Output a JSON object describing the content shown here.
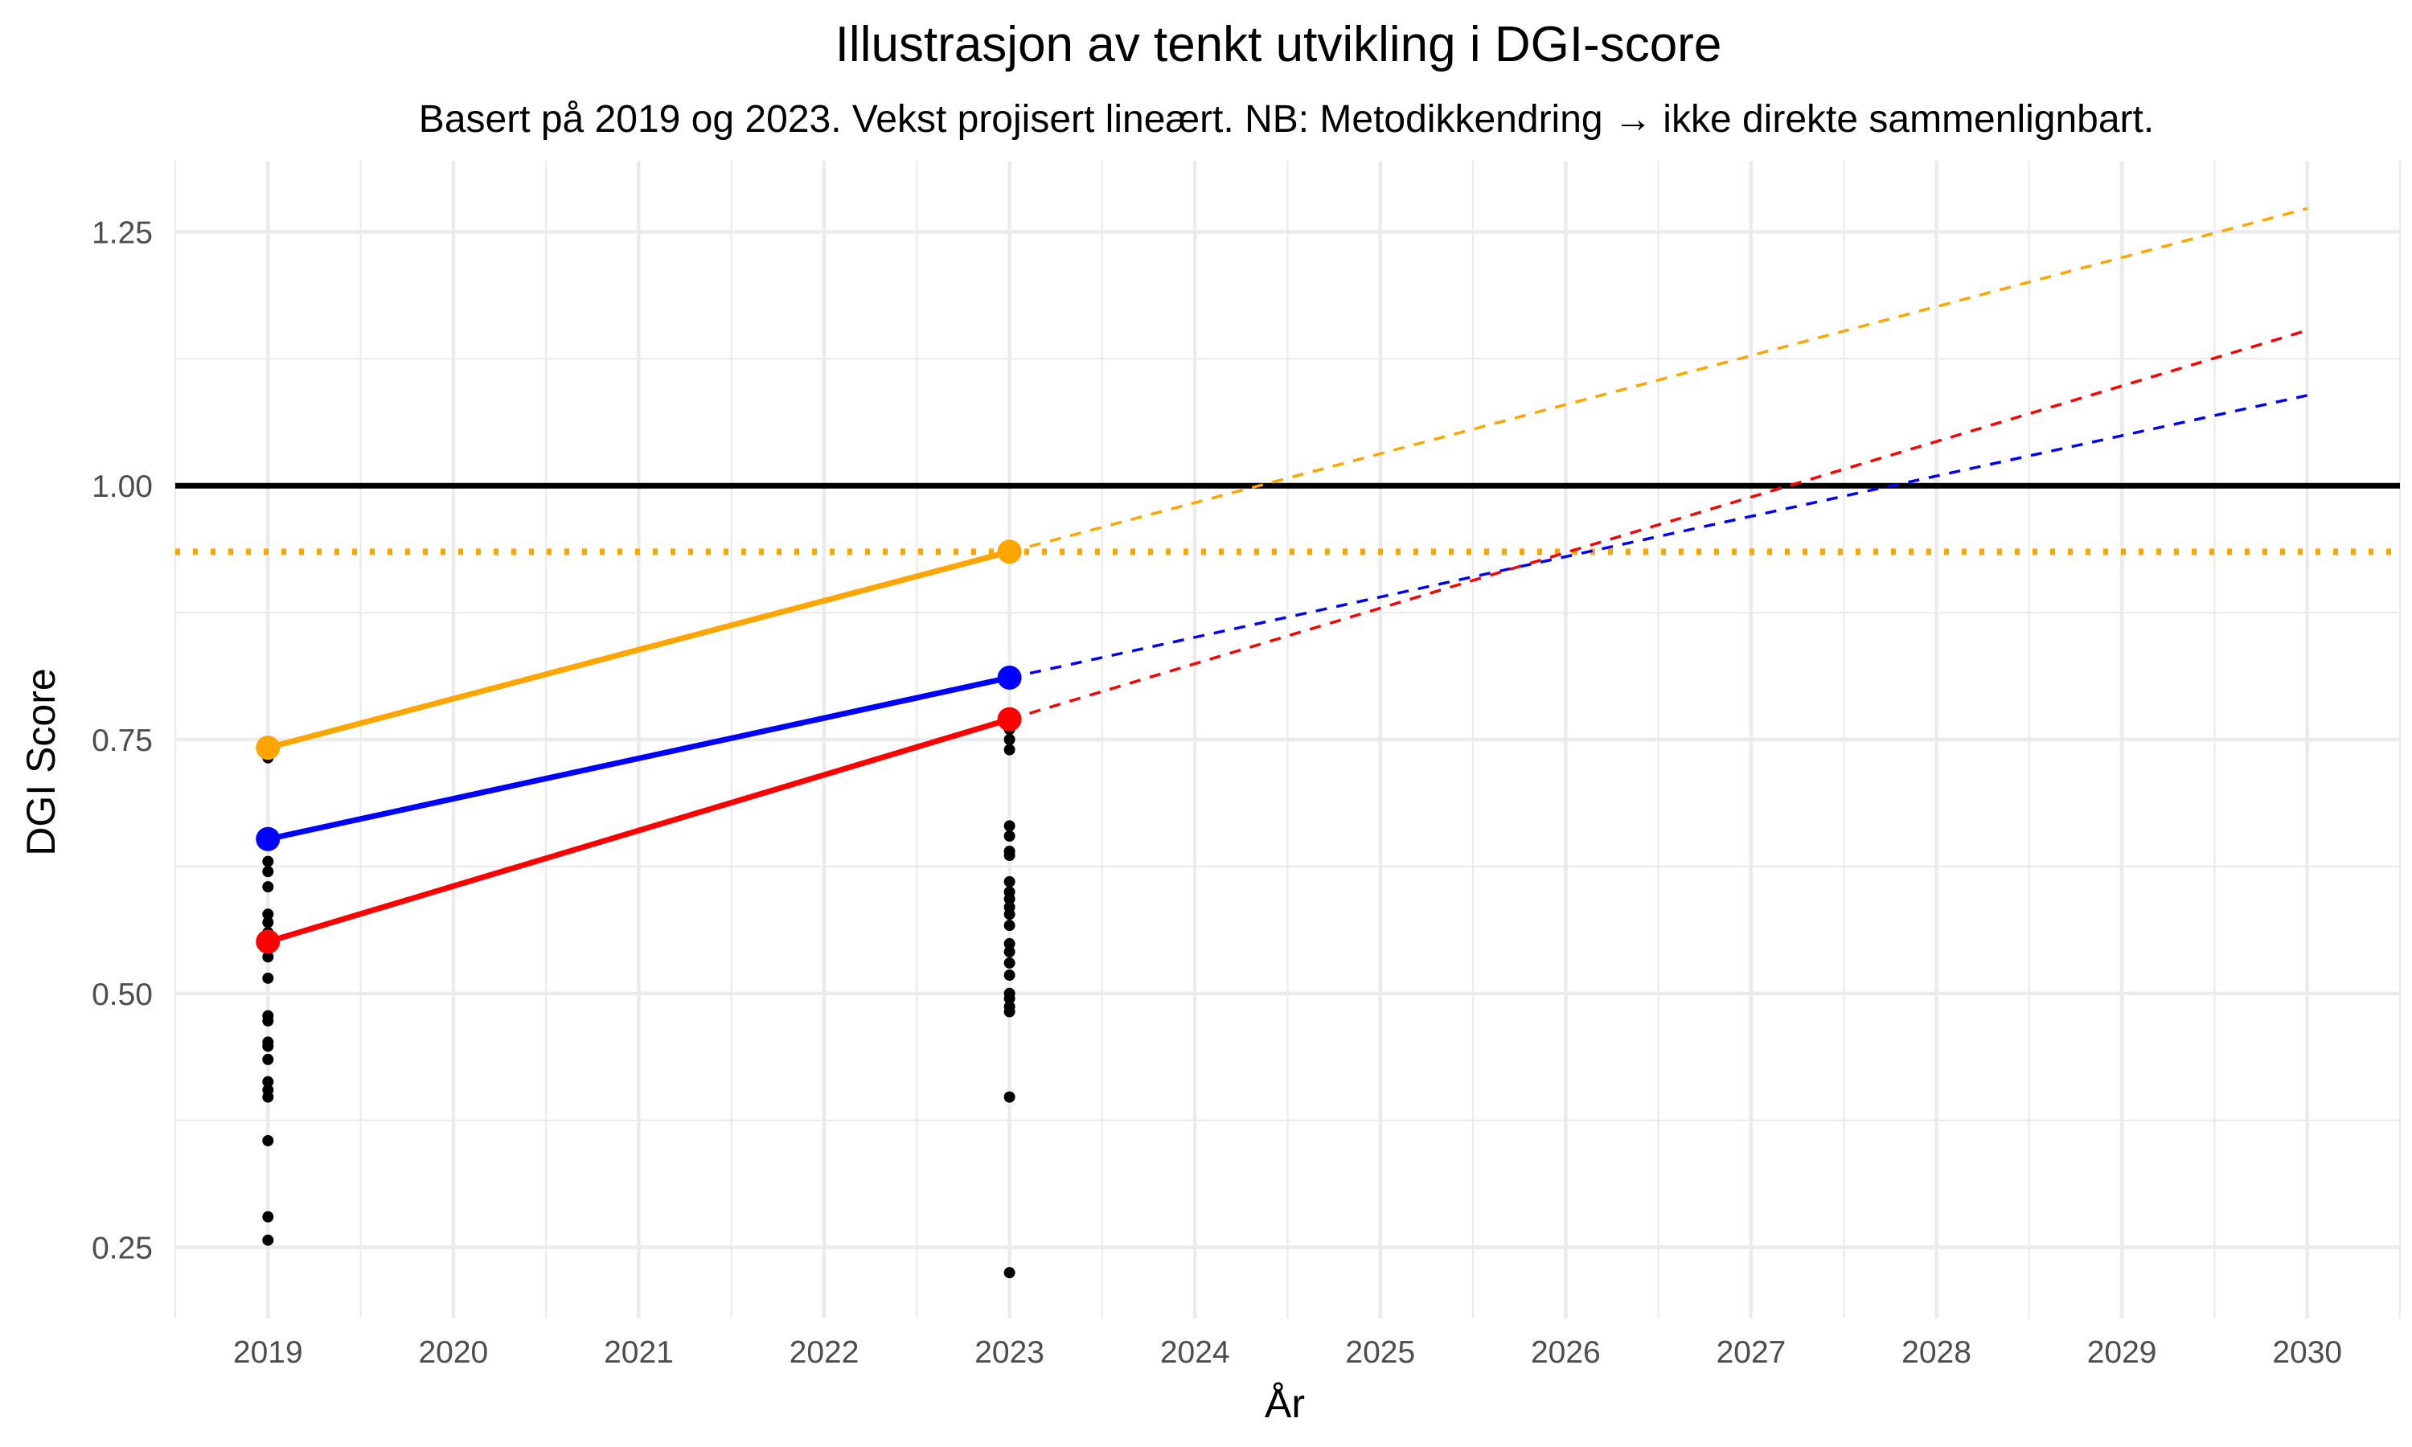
{
  "chart_data": {
    "type": "line",
    "title": "Illustrasjon av tenkt utvikling i DGI-score",
    "subtitle": "Basert på 2019 og 2023. Vekst projisert lineært. NB: Metodikkendring → ikke direkte sammenlignbart.",
    "xlabel": "År",
    "ylabel": "DGI Score",
    "xlim": [
      2018.5,
      2030.5
    ],
    "ylim": [
      0.18,
      1.32
    ],
    "x_ticks": [
      "2019",
      "2020",
      "2021",
      "2022",
      "2023",
      "2024",
      "2025",
      "2026",
      "2027",
      "2028",
      "2029",
      "2030"
    ],
    "y_ticks": [
      "0.25",
      "0.50",
      "0.75",
      "1.00",
      "1.25"
    ],
    "grid": true,
    "legend": "none",
    "series": [
      {
        "color": "#FFA500",
        "x": [
          2019,
          2023
        ],
        "values": [
          0.742,
          0.935
        ],
        "projection": {
          "x": [
            2023,
            2030
          ],
          "values": [
            0.935,
            1.273
          ]
        }
      },
      {
        "color": "#0000FF",
        "x": [
          2019,
          2023
        ],
        "values": [
          0.652,
          0.811
        ],
        "projection": {
          "x": [
            2023,
            2030
          ],
          "values": [
            0.811,
            1.089
          ]
        }
      },
      {
        "color": "#FF0000",
        "x": [
          2019,
          2023
        ],
        "values": [
          0.551,
          0.77
        ],
        "projection": {
          "x": [
            2023,
            2030
          ],
          "values": [
            0.77,
            1.153
          ]
        }
      }
    ],
    "reference_lines": [
      {
        "y": 1.0,
        "color": "#000000",
        "style": "solid"
      },
      {
        "y": 0.935,
        "color": "#FFA500",
        "style": "dotted"
      }
    ],
    "scatter": {
      "color": "#000000",
      "points": [
        {
          "x": 2019,
          "values": [
            0.738,
            0.732,
            0.652,
            0.648,
            0.63,
            0.62,
            0.605,
            0.578,
            0.57,
            0.56,
            0.551,
            0.545,
            0.536,
            0.515,
            0.478,
            0.473,
            0.452,
            0.448,
            0.435,
            0.413,
            0.405,
            0.398,
            0.355,
            0.28,
            0.257
          ]
        },
        {
          "x": 2023,
          "values": [
            0.775,
            0.77,
            0.76,
            0.75,
            0.74,
            0.665,
            0.655,
            0.64,
            0.636,
            0.61,
            0.6,
            0.593,
            0.585,
            0.578,
            0.567,
            0.549,
            0.541,
            0.53,
            0.518,
            0.5,
            0.495,
            0.487,
            0.482,
            0.398,
            0.225
          ]
        }
      ]
    }
  }
}
